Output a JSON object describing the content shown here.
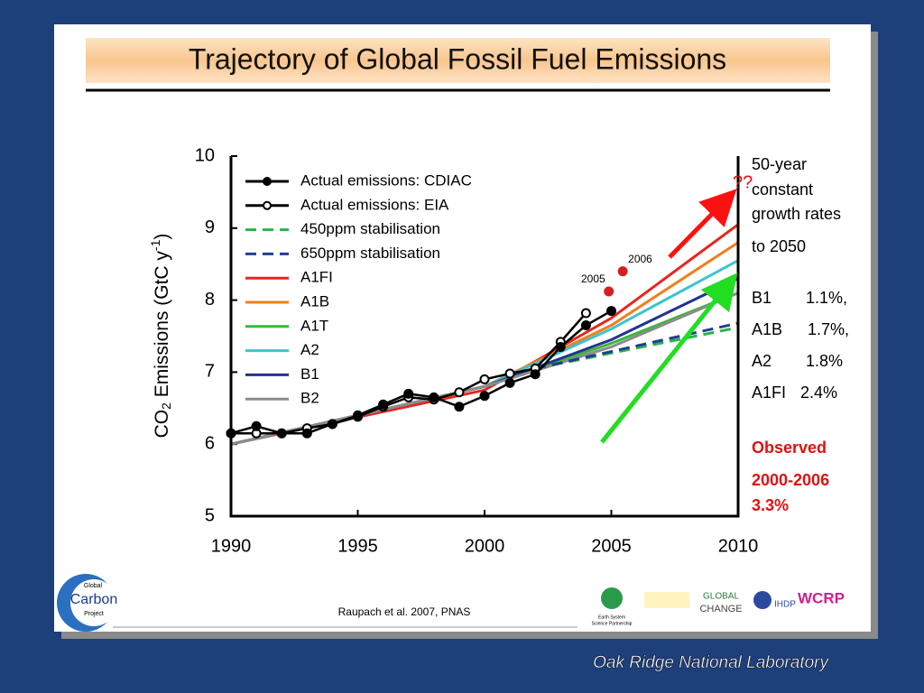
{
  "chart_data": {
    "type": "line",
    "title": "Trajectory of Global Fossil Fuel Emissions",
    "y_label": [
      "CO",
      "2",
      " Emissions (GtC y",
      "-1",
      ")"
    ],
    "xlim": [
      1990,
      2010
    ],
    "xticks": [
      1990,
      1995,
      2000,
      2005,
      2010
    ],
    "ylim": [
      5,
      10
    ],
    "yticks": [
      5,
      6,
      7,
      8,
      9,
      10
    ],
    "series": [
      {
        "name": "Actual emissions: CDIAC",
        "color": "#000000",
        "marker": "filled",
        "dash": false,
        "x": [
          1990,
          1991,
          1992,
          1993,
          1994,
          1995,
          1996,
          1997,
          1998,
          1999,
          2000,
          2001,
          2002,
          2003,
          2004,
          2005
        ],
        "values": [
          6.15,
          6.25,
          6.15,
          6.15,
          6.28,
          6.4,
          6.55,
          6.7,
          6.65,
          6.52,
          6.67,
          6.85,
          6.97,
          7.35,
          7.65,
          7.85
        ]
      },
      {
        "name": "Actual emissions: EIA",
        "color": "#000000",
        "marker": "open",
        "dash": false,
        "x": [
          1990,
          1991,
          1992,
          1993,
          1994,
          1995,
          1996,
          1997,
          1998,
          1999,
          2000,
          2001,
          2002,
          2003,
          2004
        ],
        "values": [
          6.15,
          6.15,
          6.15,
          6.22,
          6.28,
          6.38,
          6.52,
          6.65,
          6.62,
          6.72,
          6.9,
          6.98,
          7.05,
          7.42,
          7.82
        ]
      },
      {
        "name": "450ppm stabilisation",
        "color": "#2bb34a",
        "marker": "none",
        "dash": true,
        "x": [
          2002,
          2010
        ],
        "values": [
          7.05,
          7.62
        ]
      },
      {
        "name": "650ppm stabilisation",
        "color": "#1f3f8f",
        "marker": "none",
        "dash": true,
        "x": [
          2002,
          2010
        ],
        "values": [
          7.05,
          7.68
        ]
      },
      {
        "name": "A1FI",
        "color": "#e8261c",
        "marker": "none",
        "dash": false,
        "x": [
          1990,
          2000,
          2005,
          2010
        ],
        "values": [
          6.0,
          6.75,
          7.75,
          9.05
        ]
      },
      {
        "name": "A1B",
        "color": "#ef7f1a",
        "marker": "none",
        "dash": false,
        "x": [
          1990,
          2000,
          2005,
          2010
        ],
        "values": [
          6.0,
          6.8,
          7.65,
          8.8
        ]
      },
      {
        "name": "A1T",
        "color": "#38b838",
        "marker": "none",
        "dash": false,
        "x": [
          1990,
          2000,
          2005,
          2010
        ],
        "values": [
          6.0,
          6.8,
          7.4,
          8.1
        ]
      },
      {
        "name": "A2",
        "color": "#3ec3d0",
        "marker": "none",
        "dash": false,
        "x": [
          1990,
          2000,
          2005,
          2010
        ],
        "values": [
          6.0,
          6.8,
          7.6,
          8.55
        ]
      },
      {
        "name": "B1",
        "color": "#23338f",
        "marker": "none",
        "dash": false,
        "x": [
          1990,
          2000,
          2005,
          2010
        ],
        "values": [
          6.0,
          6.8,
          7.45,
          8.3
        ]
      },
      {
        "name": "B2",
        "color": "#8c8c8c",
        "marker": "none",
        "dash": false,
        "x": [
          1990,
          2000,
          2005,
          2010
        ],
        "values": [
          6.0,
          6.8,
          7.35,
          8.1
        ]
      }
    ],
    "observed_points": {
      "color": "#d62020",
      "labels": [
        "2005",
        "2006"
      ],
      "x": [
        2004.9,
        2005.45
      ],
      "values": [
        8.12,
        8.4
      ]
    },
    "annotations": [
      "??",
      "50-year",
      "constant",
      "growth rates",
      "to 2050",
      "B1",
      "1.1%,",
      "A1B",
      "1.7%,",
      "A2",
      "1.8%",
      "A1FI",
      "2.4%",
      "Observed",
      "2000-2006",
      "3.3%"
    ]
  },
  "footer": {
    "citation": "Raupach et al. 2007, PNAS",
    "logo_gcp": [
      "Global",
      "Carbon",
      "Project"
    ],
    "logo_essp": [
      "Earth System",
      "Science Partnership"
    ],
    "logo_gc": [
      "GLOBAL",
      "CHANGE"
    ],
    "logo_ihdp": "IHDP",
    "logo_wcrp": "WCRP",
    "lab": "Oak Ridge National Laboratory"
  }
}
